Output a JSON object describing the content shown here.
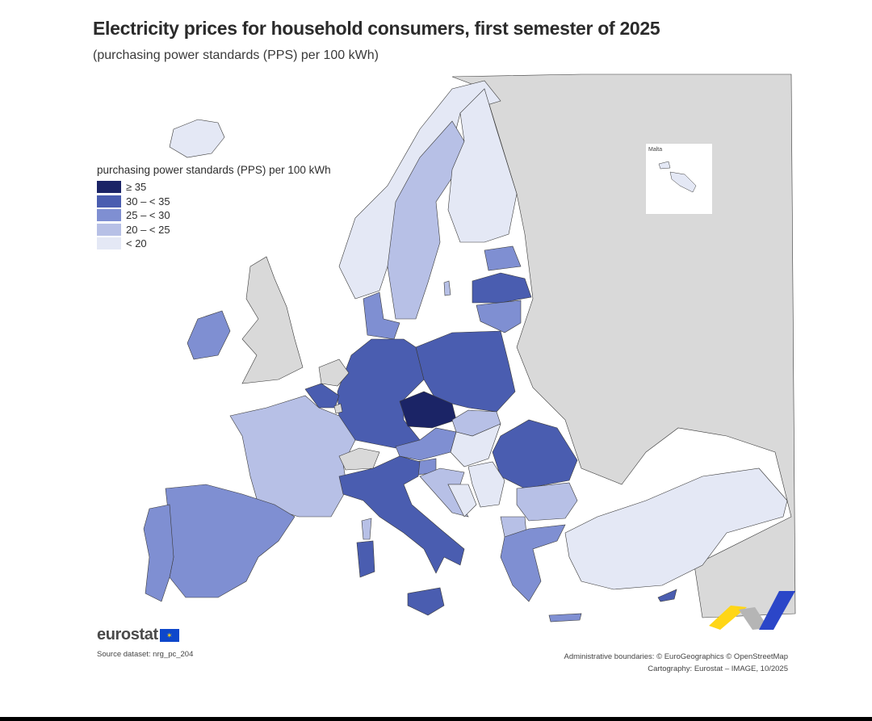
{
  "title": "Electricity prices for household consumers, first semester of 2025",
  "subtitle": "(purchasing power standards (PPS) per 100 kWh)",
  "legend": {
    "title": "purchasing power standards (PPS) per 100 kWh",
    "classes": [
      {
        "label": "≥ 35",
        "color": "#1b2466"
      },
      {
        "label": "30 – < 35",
        "color": "#4a5db0"
      },
      {
        "label": "25 – < 30",
        "color": "#7f8fd2"
      },
      {
        "label": "20 – < 25",
        "color": "#b7c0e6"
      },
      {
        "label": "< 20",
        "color": "#e4e8f5"
      }
    ]
  },
  "colors": {
    "no_data_land": "#d9d9d9",
    "sea": "#ffffff",
    "border": "#3a3a3a"
  },
  "inset": {
    "label": "Malta"
  },
  "countries": [
    {
      "name": "Czechia",
      "class": "≥ 35"
    },
    {
      "name": "Germany",
      "class": "30 – < 35"
    },
    {
      "name": "Poland",
      "class": "30 – < 35"
    },
    {
      "name": "Italy",
      "class": "30 – < 35"
    },
    {
      "name": "Belgium",
      "class": "30 – < 35"
    },
    {
      "name": "Romania",
      "class": "30 – < 35"
    },
    {
      "name": "Latvia",
      "class": "30 – < 35"
    },
    {
      "name": "Cyprus",
      "class": "30 – < 35"
    },
    {
      "name": "Spain",
      "class": "25 – < 30"
    },
    {
      "name": "Portugal",
      "class": "25 – < 30"
    },
    {
      "name": "Ireland",
      "class": "25 – < 30"
    },
    {
      "name": "Austria",
      "class": "25 – < 30"
    },
    {
      "name": "Greece",
      "class": "25 – < 30"
    },
    {
      "name": "Lithuania",
      "class": "25 – < 30"
    },
    {
      "name": "Estonia",
      "class": "25 – < 30"
    },
    {
      "name": "Denmark",
      "class": "25 – < 30"
    },
    {
      "name": "Slovenia",
      "class": "25 – < 30"
    },
    {
      "name": "France",
      "class": "20 – < 25"
    },
    {
      "name": "Sweden",
      "class": "20 – < 25"
    },
    {
      "name": "Slovakia",
      "class": "20 – < 25"
    },
    {
      "name": "Bulgaria",
      "class": "20 – < 25"
    },
    {
      "name": "Croatia",
      "class": "20 – < 25"
    },
    {
      "name": "Norway",
      "class": "< 20"
    },
    {
      "name": "Finland",
      "class": "< 20"
    },
    {
      "name": "Hungary",
      "class": "< 20"
    },
    {
      "name": "Türkiye",
      "class": "< 20"
    },
    {
      "name": "Serbia",
      "class": "< 20"
    },
    {
      "name": "Malta",
      "class": "< 20"
    }
  ],
  "logo": {
    "text": "eurostat",
    "flag_glyph": "✶"
  },
  "source": "Source dataset: nrg_pc_204",
  "credits": {
    "line1": "Administrative boundaries: © EuroGeographics © OpenStreetMap",
    "line2": "Cartography: Eurostat – IMAGE, 10/2025"
  }
}
